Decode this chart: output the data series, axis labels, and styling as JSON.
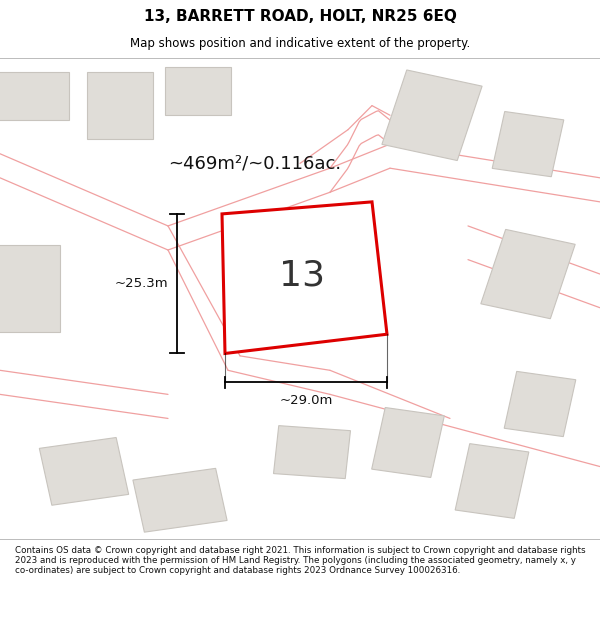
{
  "title_line1": "13, BARRETT ROAD, HOLT, NR25 6EQ",
  "title_line2": "Map shows position and indicative extent of the property.",
  "footer_text": "Contains OS data © Crown copyright and database right 2021. This information is subject to Crown copyright and database rights 2023 and is reproduced with the permission of HM Land Registry. The polygons (including the associated geometry, namely x, y co-ordinates) are subject to Crown copyright and database rights 2023 Ordnance Survey 100026316.",
  "area_label": "~469m²/~0.116ac.",
  "width_label": "~29.0m",
  "height_label": "~25.3m",
  "plot_number": "13",
  "map_bg": "#f8f7f5",
  "plot_color": "#dd0000",
  "road_color": "#f0a0a0",
  "building_color": "#e0ddd8",
  "building_edge": "#c8c4be"
}
